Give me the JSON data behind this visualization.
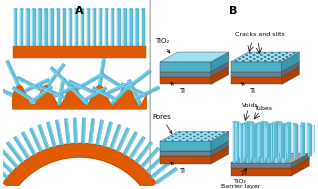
{
  "orange": "#e05a00",
  "orange_dark": "#b04000",
  "orange_side": "#c84800",
  "blue_tube": "#60c0d8",
  "blue_tube_light": "#90d8f0",
  "blue_tube_dark": "#3090b8",
  "teal_top": "#88d8e8",
  "teal_top2": "#a0e0f0",
  "teal_side": "#50b0c8",
  "gray_layer": "#a0aab0",
  "gray_side": "#708090",
  "white": "#ffffff",
  "black": "#000000",
  "panel_edge": "#999999",
  "title_A": "A",
  "title_B": "B",
  "label_TiO2": "TiO₂",
  "label_Ti_top": "Ti",
  "label_Ti_top2": "Ti",
  "label_cracks": "Cracks and slits",
  "label_pores": "Pores",
  "label_voids": "Voids",
  "label_tubes": "Tubes",
  "label_TiO2b": "TiO₂",
  "label_barrier": "Barrier layer",
  "fs_title": 8,
  "fs_label": 5.0,
  "fs_small": 4.5
}
